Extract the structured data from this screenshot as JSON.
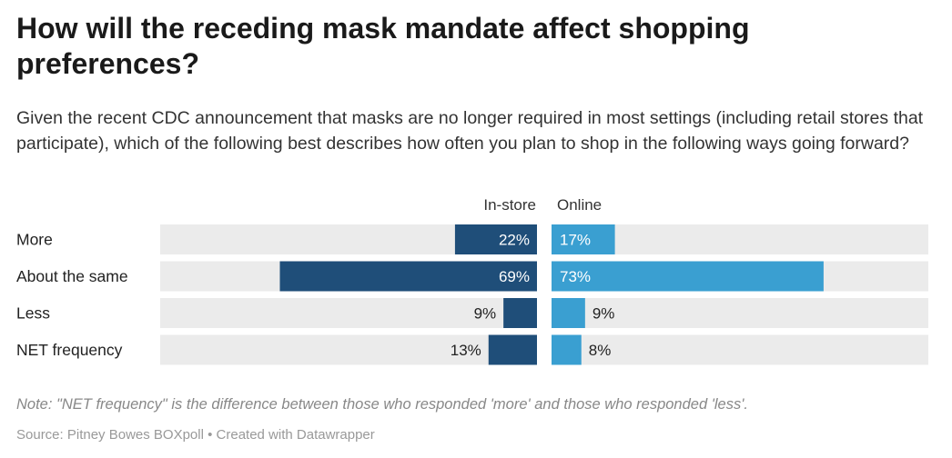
{
  "title": "How will the receding mask mandate affect shopping preferences?",
  "subtitle": "Given the recent CDC announcement that masks are no longer required in most settings (including retail stores that participate), which of the following best describes how often you plan to shop in the following ways going forward?",
  "note": "Note: \"NET frequency\" is the difference between those who responded 'more' and those who responded 'less'.",
  "source": "Source: Pitney Bowes BOXpoll • Created with Datawrapper",
  "colors": {
    "instore": "#1f4e79",
    "online": "#3a9fd1",
    "track": "#ebebeb"
  },
  "chart_data": {
    "type": "bar",
    "categories": [
      "More",
      "About the same",
      "Less",
      "NET frequency"
    ],
    "series": [
      {
        "name": "In-store",
        "values": [
          22,
          69,
          9,
          13
        ]
      },
      {
        "name": "Online",
        "values": [
          17,
          73,
          9,
          8
        ]
      }
    ],
    "labels": {
      "In-store": [
        "22%",
        "69%",
        "9%",
        "13%"
      ],
      "Online": [
        "17%",
        "73%",
        "9%",
        "8%"
      ]
    },
    "xlim": [
      0,
      100
    ]
  }
}
